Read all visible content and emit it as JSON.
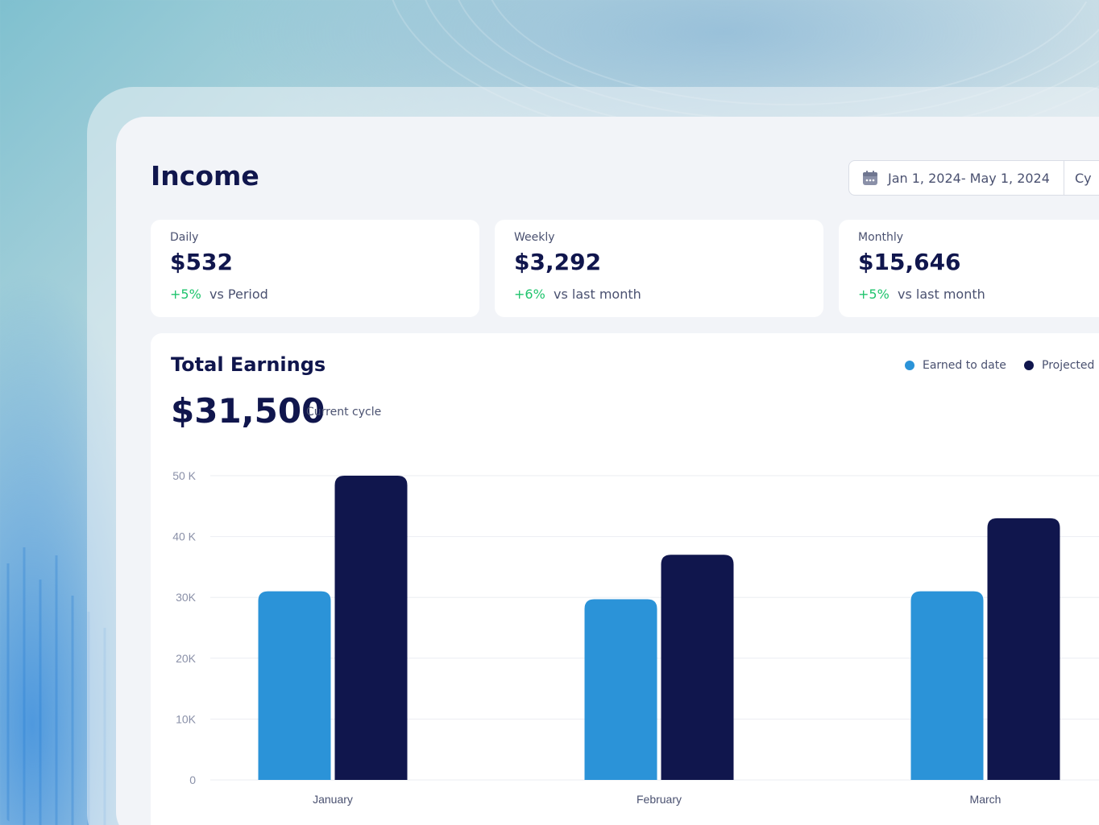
{
  "page": {
    "title": "Income"
  },
  "date_filter": {
    "range": "Jan 1, 2024- May 1, 2024",
    "cycle_label": "Cy"
  },
  "stats": [
    {
      "label": "Daily",
      "value": "$532",
      "delta": "+5%",
      "compare": "vs Period"
    },
    {
      "label": "Weekly",
      "value": "$3,292",
      "delta": "+6%",
      "compare": "vs last month"
    },
    {
      "label": "Monthly",
      "value": "$15,646",
      "delta": "+5%",
      "compare": "vs last month"
    }
  ],
  "earnings": {
    "title": "Total Earnings",
    "total": "$31,500",
    "cycle": "Current cycle",
    "legend": [
      {
        "label": "Earned to date",
        "color": "#2b93d8"
      },
      {
        "label": "Projected",
        "color": "#10164d"
      }
    ]
  },
  "chart_data": {
    "type": "bar",
    "categories": [
      "January",
      "February",
      "March"
    ],
    "series": [
      {
        "name": "Earned to date",
        "color": "#2b93d8",
        "values": [
          31000,
          29700,
          31000
        ]
      },
      {
        "name": "Projected",
        "color": "#10164d",
        "values": [
          50000,
          37000,
          43000
        ]
      }
    ],
    "yticks": [
      {
        "value": 0,
        "label": "0"
      },
      {
        "value": 10000,
        "label": "10K"
      },
      {
        "value": 20000,
        "label": "20K"
      },
      {
        "value": 30000,
        "label": "30K"
      },
      {
        "value": 40000,
        "label": "40 K"
      },
      {
        "value": 50000,
        "label": "50 K"
      }
    ],
    "ylim": [
      0,
      50000
    ],
    "grid": true,
    "legend": "top-right"
  }
}
